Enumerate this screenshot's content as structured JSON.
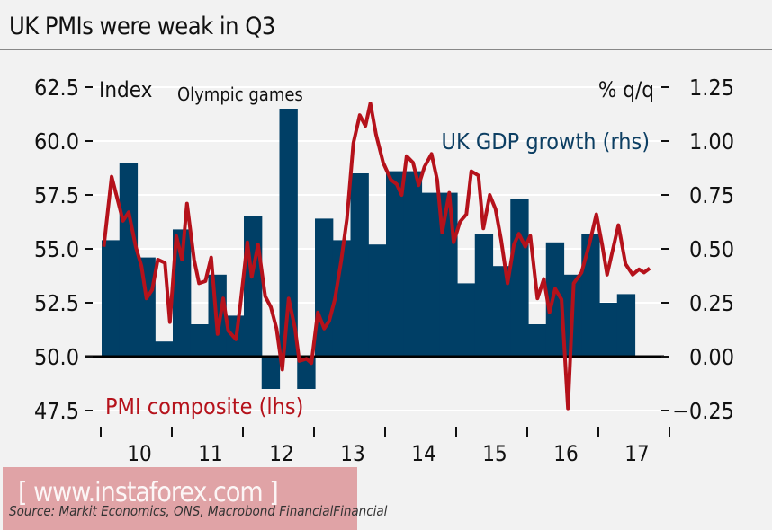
{
  "title": "UK PMIs were weak in Q3",
  "watermark": "[ www.instaforex.com ]",
  "source": "Source: Markit Economics, ONS, Macrobond FinancialFinancial",
  "colors": {
    "bars": "#003f66",
    "line": "#b5121b",
    "gdp_label": "#0d3f63",
    "background": "#f2f2f2"
  },
  "chart_data": {
    "type": "bar+line",
    "left_axis": {
      "label": "Index",
      "ticks": [
        "62.5",
        "60.0",
        "57.5",
        "55.0",
        "52.5",
        "50.0",
        "47.5"
      ],
      "range": [
        47.5,
        62.5
      ]
    },
    "right_axis": {
      "label": "% q/q",
      "ticks": [
        "1.25",
        "1.00",
        "0.75",
        "0.50",
        "0.25",
        "0.00",
        "-0.25"
      ],
      "range": [
        -0.25,
        1.25
      ]
    },
    "x_ticks": [
      "10",
      "11",
      "12",
      "13",
      "14",
      "15",
      "16",
      "17"
    ],
    "annotation": "Olympic games",
    "grid": true,
    "series": [
      {
        "name": "UK GDP growth (rhs)",
        "type": "bar",
        "axis": "right",
        "categories": [
          "2010Q1",
          "2010Q2",
          "2010Q3",
          "2010Q4",
          "2011Q1",
          "2011Q2",
          "2011Q3",
          "2011Q4",
          "2012Q1",
          "2012Q2",
          "2012Q3",
          "2012Q4",
          "2013Q1",
          "2013Q2",
          "2013Q3",
          "2013Q4",
          "2014Q1",
          "2014Q2",
          "2014Q3",
          "2014Q4",
          "2015Q1",
          "2015Q2",
          "2015Q3",
          "2015Q4",
          "2016Q1",
          "2016Q2",
          "2016Q3",
          "2016Q4",
          "2017Q1",
          "2017Q2"
        ],
        "values": [
          0.54,
          0.9,
          0.46,
          0.07,
          0.59,
          0.15,
          0.38,
          0.19,
          0.65,
          -0.15,
          1.15,
          -0.15,
          0.64,
          0.54,
          0.85,
          0.52,
          0.86,
          0.86,
          0.76,
          0.76,
          0.34,
          0.57,
          0.42,
          0.73,
          0.15,
          0.53,
          0.38,
          0.57,
          0.25,
          0.29
        ]
      },
      {
        "name": "PMI composite (lhs)",
        "type": "line",
        "axis": "left",
        "x": [
          2010.03,
          2010.14,
          2010.3,
          2010.38,
          2010.48,
          2010.56,
          2010.63,
          2010.71,
          2010.79,
          2010.89,
          2010.96,
          2011.05,
          2011.13,
          2011.2,
          2011.3,
          2011.37,
          2011.46,
          2011.54,
          2011.63,
          2011.71,
          2011.78,
          2011.89,
          2011.95,
          2012.05,
          2012.11,
          2012.2,
          2012.3,
          2012.38,
          2012.46,
          2012.54,
          2012.63,
          2012.72,
          2012.78,
          2012.88,
          2012.95,
          2013.04,
          2013.13,
          2013.2,
          2013.28,
          2013.37,
          2013.45,
          2013.54,
          2013.63,
          2013.71,
          2013.78,
          2013.86,
          2013.96,
          2014.07,
          2014.15,
          2014.22,
          2014.29,
          2014.38,
          2014.46,
          2014.54,
          2014.64,
          2014.72,
          2014.79,
          2014.89,
          2014.95,
          2015.04,
          2015.13,
          2015.2,
          2015.3,
          2015.37,
          2015.46,
          2015.54,
          2015.62,
          2015.71,
          2015.8,
          2015.87,
          2015.96,
          2016.03,
          2016.13,
          2016.22,
          2016.3,
          2016.38,
          2016.47,
          2016.56,
          2016.64,
          2016.75,
          2016.86,
          2016.96,
          2017.04,
          2017.11,
          2017.27,
          2017.37,
          2017.47,
          2017.56,
          2017.63,
          2017.71
        ],
        "values": [
          55.1,
          58.35,
          56.3,
          56.7,
          55.1,
          54.2,
          52.7,
          53.1,
          54.5,
          54.35,
          51.6,
          55.6,
          54.5,
          57.1,
          54.5,
          53.4,
          53.5,
          54.6,
          51.05,
          52.7,
          51.2,
          50.8,
          52.4,
          55.3,
          53.7,
          55.2,
          52.8,
          52.3,
          51.3,
          49.4,
          52.7,
          51.3,
          49.8,
          49.9,
          49.7,
          52.05,
          51.3,
          51.65,
          52.65,
          54.45,
          56.4,
          59.9,
          61.2,
          60.7,
          61.75,
          60.3,
          59.0,
          58.2,
          58.0,
          57.5,
          59.3,
          59.0,
          57.95,
          58.8,
          59.4,
          58.2,
          55.75,
          57.6,
          55.3,
          56.25,
          56.6,
          58.6,
          58.4,
          55.95,
          57.5,
          56.85,
          55.4,
          53.4,
          55.2,
          55.7,
          55.1,
          55.6,
          52.7,
          53.6,
          52.05,
          53.15,
          52.65,
          47.6,
          53.4,
          53.9,
          55.2,
          56.6,
          55.2,
          53.8,
          56.1,
          54.3,
          53.8,
          54.05,
          53.9,
          54.1
        ]
      }
    ]
  }
}
